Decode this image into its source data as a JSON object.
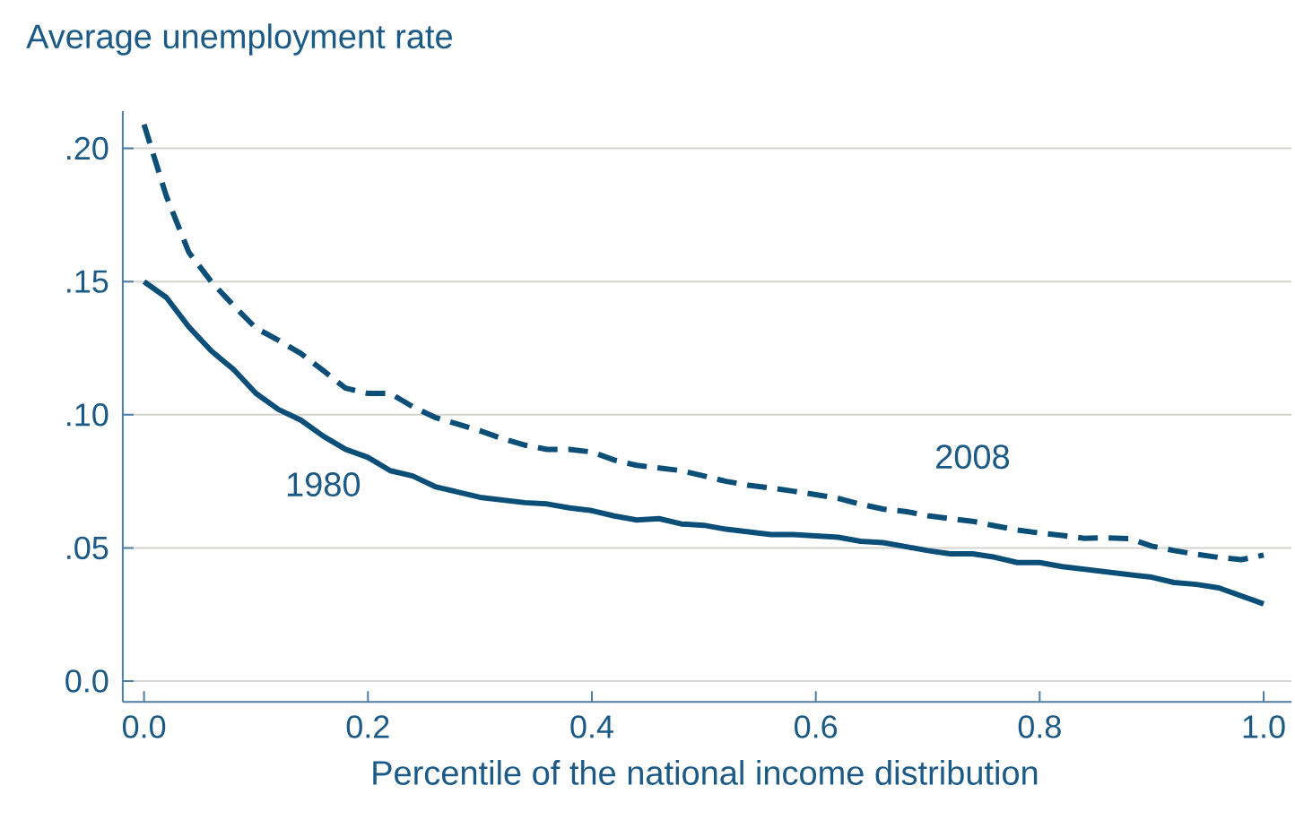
{
  "chart_data": {
    "type": "line",
    "xlabel": "Percentile of the national income distribution",
    "ylabel": "Average unemployment rate",
    "x": [
      0,
      0.02,
      0.04,
      0.06,
      0.08,
      0.1,
      0.12,
      0.14,
      0.16,
      0.18,
      0.2,
      0.22,
      0.24,
      0.26,
      0.28,
      0.3,
      0.32,
      0.34,
      0.36,
      0.38,
      0.4,
      0.42,
      0.44,
      0.46,
      0.48,
      0.5,
      0.52,
      0.54,
      0.56,
      0.58,
      0.6,
      0.62,
      0.64,
      0.66,
      0.68,
      0.7,
      0.72,
      0.74,
      0.76,
      0.78,
      0.8,
      0.82,
      0.84,
      0.86,
      0.88,
      0.9,
      0.92,
      0.94,
      0.96,
      0.98,
      1.0
    ],
    "series": [
      {
        "name": "1980",
        "color": "#0b4f79",
        "line_style": "solid",
        "values": [
          0.15,
          0.144,
          0.133,
          0.124,
          0.117,
          0.108,
          0.102,
          0.098,
          0.092,
          0.087,
          0.084,
          0.079,
          0.077,
          0.073,
          0.071,
          0.069,
          0.068,
          0.067,
          0.0665,
          0.065,
          0.064,
          0.062,
          0.0605,
          0.061,
          0.059,
          0.0585,
          0.057,
          0.056,
          0.055,
          0.055,
          0.0545,
          0.054,
          0.0525,
          0.052,
          0.0505,
          0.049,
          0.0478,
          0.0478,
          0.0465,
          0.0445,
          0.0445,
          0.043,
          0.042,
          0.041,
          0.04,
          0.039,
          0.037,
          0.0363,
          0.035,
          0.032,
          0.029
        ]
      },
      {
        "name": "2008",
        "color": "#0b4f79",
        "line_style": "dashed",
        "values": [
          0.209,
          0.182,
          0.161,
          0.15,
          0.141,
          0.1325,
          0.128,
          0.123,
          0.1166,
          0.11,
          0.108,
          0.108,
          0.103,
          0.099,
          0.0965,
          0.094,
          0.091,
          0.0886,
          0.087,
          0.087,
          0.086,
          0.083,
          0.081,
          0.08,
          0.079,
          0.077,
          0.075,
          0.0735,
          0.0725,
          0.0713,
          0.07,
          0.0686,
          0.0664,
          0.0646,
          0.0637,
          0.0621,
          0.061,
          0.06,
          0.0583,
          0.0567,
          0.0556,
          0.0547,
          0.0536,
          0.0538,
          0.0535,
          0.0507,
          0.049,
          0.0476,
          0.0464,
          0.0456,
          0.0473
        ]
      }
    ],
    "xlim": [
      -0.019,
      1.025
    ],
    "ylim": [
      -0.0078,
      0.214
    ],
    "xticks": [
      {
        "value": 0,
        "label": "0.0"
      },
      {
        "value": 0.2,
        "label": "0.2"
      },
      {
        "value": 0.4,
        "label": "0.4"
      },
      {
        "value": 0.6,
        "label": "0.6"
      },
      {
        "value": 0.8,
        "label": "0.8"
      },
      {
        "value": 1.0,
        "label": "1.0"
      }
    ],
    "yticks": [
      {
        "value": 0,
        "label": "0.0"
      },
      {
        "value": 0.05,
        "label": ".05"
      },
      {
        "value": 0.1,
        "label": ".10"
      },
      {
        "value": 0.15,
        "label": ".15"
      },
      {
        "value": 0.2,
        "label": ".20"
      }
    ],
    "grid": "y",
    "marker": "none"
  }
}
